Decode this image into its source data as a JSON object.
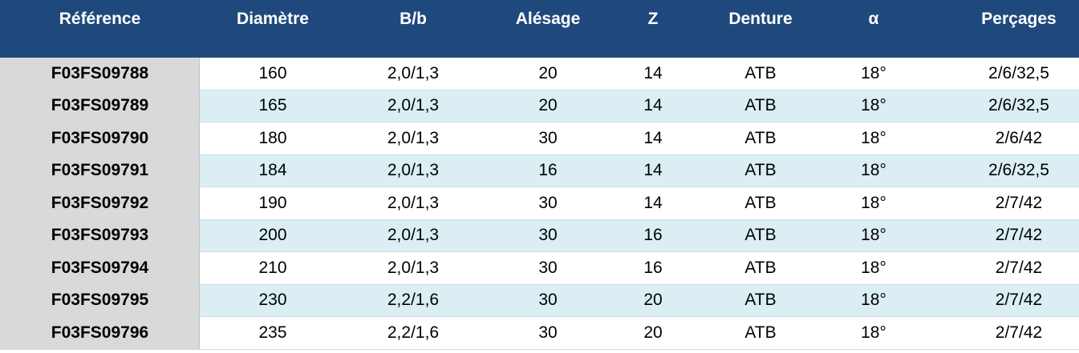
{
  "table": {
    "headers": [
      "Référence",
      "Diamètre",
      "B/b",
      "Alésage",
      "Z",
      "Denture",
      "α",
      "Perçages"
    ],
    "rows": [
      [
        "F03FS09788",
        "160",
        "2,0/1,3",
        "20",
        "14",
        "ATB",
        "18°",
        "2/6/32,5"
      ],
      [
        "F03FS09789",
        "165",
        "2,0/1,3",
        "20",
        "14",
        "ATB",
        "18°",
        "2/6/32,5"
      ],
      [
        "F03FS09790",
        "180",
        "2,0/1,3",
        "30",
        "14",
        "ATB",
        "18°",
        "2/6/42"
      ],
      [
        "F03FS09791",
        "184",
        "2,0/1,3",
        "16",
        "14",
        "ATB",
        "18°",
        "2/6/32,5"
      ],
      [
        "F03FS09792",
        "190",
        "2,0/1,3",
        "30",
        "14",
        "ATB",
        "18°",
        "2/7/42"
      ],
      [
        "F03FS09793",
        "200",
        "2,0/1,3",
        "30",
        "16",
        "ATB",
        "18°",
        "2/7/42"
      ],
      [
        "F03FS09794",
        "210",
        "2,0/1,3",
        "30",
        "16",
        "ATB",
        "18°",
        "2/7/42"
      ],
      [
        "F03FS09795",
        "230",
        "2,2/1,6",
        "30",
        "20",
        "ATB",
        "18°",
        "2/7/42"
      ],
      [
        "F03FS09796",
        "235",
        "2,2/1,6",
        "30",
        "20",
        "ATB",
        "18°",
        "2/7/42"
      ]
    ]
  },
  "colors": {
    "header_bg": "#1f497d",
    "header_text": "#ffffff",
    "alt_row_bg": "#daeef3",
    "ref_column_bg": "#d9d9d9"
  }
}
